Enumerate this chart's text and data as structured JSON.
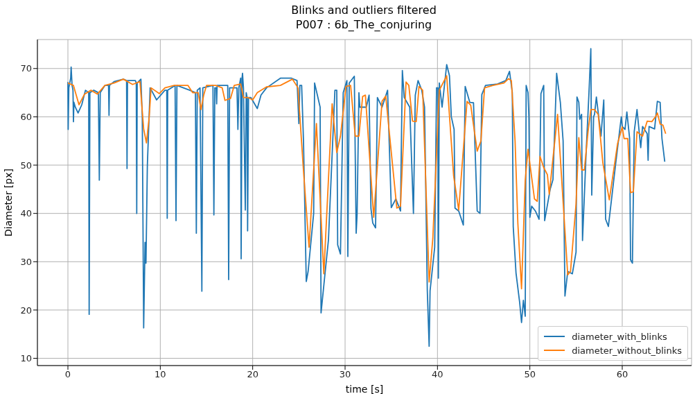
{
  "chart_data": {
    "type": "line",
    "title": "Blinks and outliers filtered",
    "subtitle": "P007 : 6b_The_conjuring",
    "xlabel": "time [s]",
    "ylabel": "Diameter [px]",
    "xlim": [
      -3.3,
      67.5
    ],
    "ylim": [
      8.5,
      76
    ],
    "xticks": [
      0,
      10,
      20,
      30,
      40,
      50,
      60
    ],
    "yticks": [
      10,
      20,
      30,
      40,
      50,
      60,
      70
    ],
    "grid": true,
    "legend": "bottom right",
    "marker": "none",
    "line_style": "solid",
    "series": [
      {
        "name": "diameter_with_blinks",
        "color": "#1f77b4",
        "x": [
          0,
          0.03,
          0.1,
          0.3,
          0.35,
          0.45,
          0.55,
          0.6,
          0.65,
          0.8,
          1.1,
          1.5,
          1.9,
          2.25,
          2.3,
          2.38,
          2.8,
          3.3,
          3.4,
          3.5,
          4.0,
          4.4,
          4.45,
          4.5,
          5.0,
          6.0,
          6.35,
          6.4,
          6.45,
          7.3,
          7.4,
          7.45,
          7.5,
          7.9,
          8.05,
          8.2,
          8.35,
          8.45,
          8.6,
          8.9,
          9.6,
          10.5,
          10.7,
          10.75,
          10.8,
          11.6,
          11.7,
          11.8,
          12.5,
          13.2,
          13.8,
          13.9,
          14.0,
          14.3,
          14.5,
          14.6,
          15.7,
          15.8,
          15.9,
          16.05,
          16.1,
          16.15,
          17.3,
          17.4,
          17.5,
          18.3,
          18.4,
          18.5,
          18.7,
          18.75,
          18.85,
          18.9,
          19.0,
          19.2,
          19.3,
          19.4,
          19.45,
          19.55,
          19.8,
          20.5,
          20.9,
          21.5,
          23,
          24.2,
          24.8,
          25.0,
          25.1,
          25.3,
          25.5,
          25.8,
          26.0,
          26.6,
          26.7,
          27.3,
          27.4,
          27.8,
          28.2,
          28.9,
          29.1,
          29.2,
          29.5,
          29.8,
          30.2,
          30.3,
          30.45,
          31.0,
          31.2,
          31.3,
          31.5,
          31.6,
          32.3,
          32.6,
          32.8,
          33.0,
          33.3,
          33.5,
          34.0,
          34.6,
          35.0,
          35.5,
          36.0,
          36.2,
          36.4,
          37.0,
          37.4,
          37.6,
          37.9,
          38.3,
          38.6,
          38.9,
          39.1,
          39.2,
          39.7,
          39.9,
          40.05,
          40.1,
          40.2,
          40.5,
          41.0,
          41.3,
          41.5,
          41.8,
          41.9,
          42.3,
          42.8,
          43.0,
          43.5,
          43.9,
          44.3,
          44.6,
          44.8,
          45.2,
          46.5,
          47.4,
          47.8,
          48.1,
          48.2,
          48.5,
          48.9,
          49.1,
          49.3,
          49.5,
          49.6,
          49.8,
          49.9,
          50.0,
          50.2,
          50.6,
          51.0,
          51.2,
          51.5,
          51.6,
          52.2,
          52.5,
          52.9,
          53.3,
          53.6,
          53.8,
          54.1,
          54.6,
          55.0,
          55.1,
          55.3,
          55.4,
          55.6,
          55.7,
          56.1,
          56.4,
          56.6,
          56.7,
          56.9,
          57.0,
          57.2,
          57.7,
          58.0,
          58.2,
          58.5,
          59.3,
          59.9,
          60.0,
          60.3,
          60.5,
          60.8,
          60.9,
          61.1,
          61.3,
          61.6,
          62.0,
          62.2,
          62.7,
          62.8,
          62.9,
          63.5,
          63.8,
          64.1,
          64.3,
          64.6
        ],
        "values": [
          67.2,
          57.4,
          66,
          68,
          70.3,
          66.5,
          65.5,
          59,
          63,
          62,
          60.8,
          62.5,
          65.5,
          65,
          19.1,
          65,
          65.5,
          65,
          46.9,
          65,
          66.5,
          66.5,
          60.3,
          66.5,
          67.3,
          67.8,
          67.5,
          49.3,
          67.5,
          67.5,
          67,
          40,
          67,
          67.8,
          60,
          16.3,
          34,
          29.7,
          50,
          66,
          63.5,
          65.5,
          65.5,
          39,
          65.5,
          66.5,
          38.5,
          66.5,
          66,
          65.5,
          65,
          35.9,
          65.5,
          66,
          23.9,
          66,
          66.5,
          39.7,
          66,
          66,
          62.7,
          66.5,
          66.5,
          26.3,
          66,
          66,
          57.4,
          66,
          68,
          30.6,
          68,
          69,
          66,
          40.7,
          65,
          64,
          36.4,
          64,
          64,
          61.7,
          64.5,
          66,
          68,
          68,
          67.5,
          58.6,
          66.5,
          66.5,
          55,
          25.9,
          28,
          40,
          67,
          62,
          19.4,
          27,
          34.5,
          65.5,
          65.5,
          33.5,
          31.6,
          65,
          67.5,
          31.1,
          67,
          68.4,
          35.9,
          39.7,
          65,
          62,
          62,
          64.5,
          41,
          38,
          37,
          64,
          62,
          65.5,
          41.2,
          43,
          40.5,
          69.6,
          64,
          62,
          40,
          64.5,
          67.5,
          65.5,
          62,
          24,
          12.5,
          24,
          33,
          66,
          66,
          26.6,
          67,
          62,
          70.8,
          68.5,
          60,
          57.4,
          41.1,
          40.5,
          37.6,
          66.3,
          63,
          62.9,
          40.5,
          40,
          64.6,
          66.5,
          66.8,
          67.5,
          69.4,
          65,
          37.3,
          27.7,
          21.5,
          17.4,
          22,
          18.7,
          66.5,
          65,
          60,
          39.2,
          41.5,
          40.5,
          38.8,
          64.8,
          66.5,
          38.5,
          45,
          47,
          69,
          63,
          55,
          22.9,
          28,
          27.5,
          32,
          64.1,
          63,
          59.5,
          60.5,
          34.4,
          53,
          65,
          74.1,
          43.8,
          60,
          60.5,
          64.1,
          56,
          63.5,
          38.8,
          37.3,
          50.5,
          60,
          58,
          57.4,
          61,
          55.5,
          30.4,
          29.7,
          57,
          61.5,
          53.6,
          58,
          56.5,
          51,
          58,
          57.5,
          63.2,
          63,
          55.5,
          50.7
        ]
      },
      {
        "name": "diameter_without_blinks",
        "color": "#ff7f0e",
        "x": [
          0,
          0.6,
          1.2,
          1.8,
          2.5,
          3.2,
          4,
          5,
          6,
          7,
          7.8,
          8.2,
          8.5,
          8.8,
          9.0,
          9.9,
          10.5,
          11.5,
          13,
          13.5,
          14.1,
          14.4,
          14.7,
          15,
          16,
          16.7,
          17,
          17.6,
          18,
          18.7,
          19.0,
          19.5,
          20.0,
          20.5,
          21.5,
          23,
          24.3,
          24.9,
          25.5,
          26.1,
          26.9,
          27.7,
          28.6,
          29.1,
          29.5,
          30.1,
          30.6,
          31.1,
          31.5,
          31.9,
          32.2,
          33.1,
          34.0,
          34.4,
          35.6,
          36.0,
          36.6,
          36.9,
          37.3,
          37.7,
          38.0,
          38.4,
          39.1,
          39.5,
          40.2,
          41.0,
          41.75,
          42.3,
          43.2,
          43.6,
          44.3,
          44.7,
          45.1,
          46,
          47.2,
          47.7,
          48.0,
          48.4,
          48.7,
          49.1,
          49.5,
          49.8,
          50.2,
          50.5,
          50.8,
          51.1,
          51.5,
          51.9,
          52.1,
          53.0,
          54.1,
          54.4,
          55.0,
          55.3,
          55.6,
          55.9,
          56.3,
          56.6,
          57.0,
          57.4,
          57.9,
          58.6,
          59.5,
          60.0,
          60.2,
          60.6,
          60.9,
          61.2,
          61.6,
          62.2,
          62.7,
          63.2,
          63.6,
          63.8,
          64.1,
          64.4,
          64.7
        ],
        "values": [
          67,
          66.5,
          62.5,
          64.7,
          65.5,
          64.7,
          66.5,
          67,
          67.8,
          66.7,
          67.3,
          57.5,
          54.6,
          60,
          66,
          64.8,
          66,
          66.5,
          66.5,
          65,
          65,
          61.5,
          64.5,
          66.5,
          66.5,
          66,
          63.4,
          63.8,
          66.5,
          66.8,
          64,
          64,
          63.5,
          65,
          66.2,
          66.5,
          67.8,
          66,
          48.8,
          33,
          58.6,
          27.5,
          62.7,
          52.6,
          56,
          66.3,
          66.5,
          56,
          56,
          64.2,
          64.5,
          39.2,
          63.2,
          64.3,
          41.1,
          41.5,
          67.2,
          66.5,
          59.1,
          59,
          66.3,
          65.5,
          25.8,
          34.9,
          65.5,
          68.5,
          47.8,
          40.7,
          63.2,
          62.4,
          52.9,
          55,
          66,
          66.5,
          67,
          67.9,
          67.5,
          55,
          38,
          24.4,
          46.9,
          53.3,
          47.4,
          43,
          42.5,
          51.8,
          49.5,
          48,
          44,
          60.5,
          27.3,
          28,
          42,
          55.7,
          49,
          49,
          57,
          61.5,
          61.5,
          60.5,
          50.5,
          42.8,
          54.5,
          57.9,
          55.5,
          55.5,
          44.3,
          44.5,
          56.9,
          56,
          59.1,
          59,
          60,
          60.8,
          58.5,
          58.3,
          56.5
        ]
      }
    ]
  }
}
